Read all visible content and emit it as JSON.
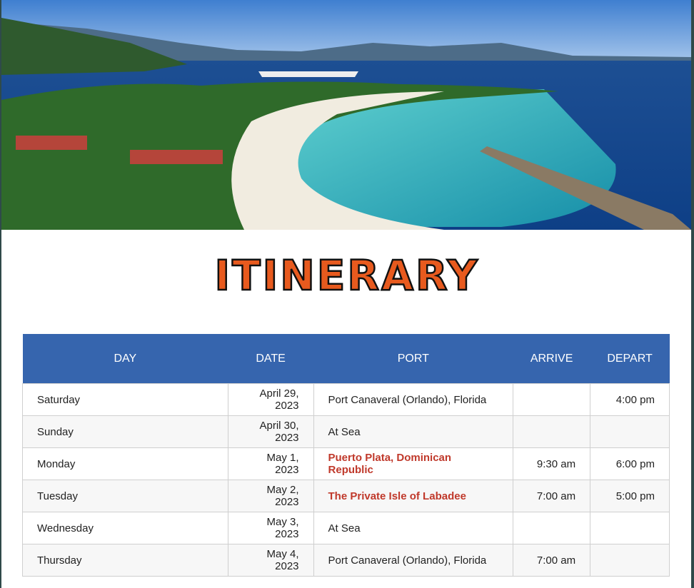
{
  "title": "ITINERARY",
  "colors": {
    "header_bg": "#3665ae",
    "highlight": "#c0392b",
    "title_fill": "#e85a1e"
  },
  "table": {
    "headers": [
      "DAY",
      "DATE",
      "PORT",
      "ARRIVE",
      "DEPART"
    ],
    "rows": [
      {
        "day": "Saturday",
        "date": "April 29, 2023",
        "port": "Port Canaveral (Orlando), Florida",
        "arrive": "",
        "depart": "4:00 pm",
        "highlight": false
      },
      {
        "day": "Sunday",
        "date": "April 30, 2023",
        "port": "At Sea",
        "arrive": "",
        "depart": "",
        "highlight": false
      },
      {
        "day": "Monday",
        "date": "May 1, 2023",
        "port": "Puerto Plata, Dominican Republic",
        "arrive": "9:30 am",
        "depart": "6:00 pm",
        "highlight": true
      },
      {
        "day": "Tuesday",
        "date": "May 2, 2023",
        "port": "The Private Isle of Labadee",
        "arrive": "7:00 am",
        "depart": "5:00 pm",
        "highlight": true
      },
      {
        "day": "Wednesday",
        "date": "May 3, 2023",
        "port": "At Sea",
        "arrive": "",
        "depart": "",
        "highlight": false
      },
      {
        "day": "Thursday",
        "date": "May 4, 2023",
        "port": "Port Canaveral (Orlando), Florida",
        "arrive": "7:00 am",
        "depart": "",
        "highlight": false
      }
    ]
  }
}
